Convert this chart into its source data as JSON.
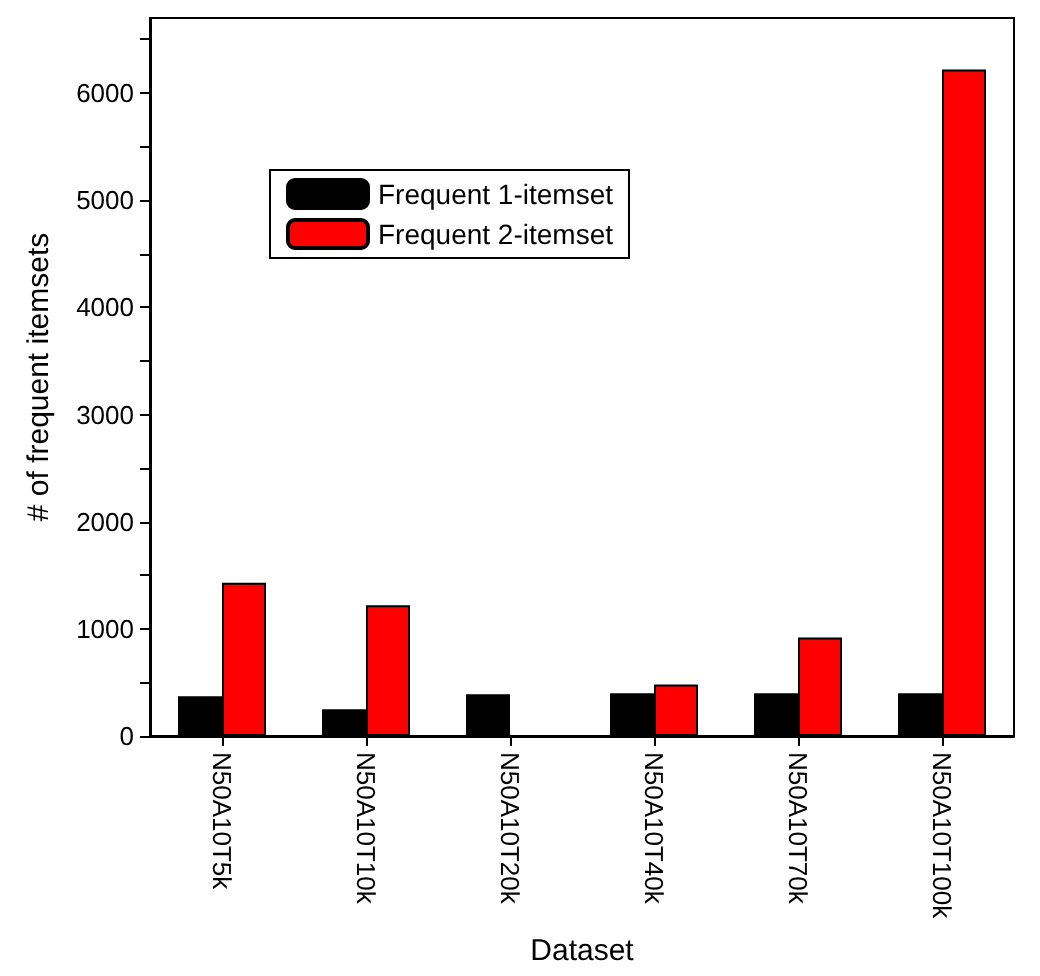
{
  "chart_data": {
    "type": "bar",
    "xlabel": "Dataset",
    "ylabel": "# of frequent itemsets",
    "categories": [
      "N50A10T5k",
      "N50A10T10k",
      "N50A10T20k",
      "N50A10T40k",
      "N50A10T70k",
      "N50A10T100k"
    ],
    "series": [
      {
        "name": "Frequent 1-itemset",
        "color": "#000000",
        "values": [
          370,
          250,
          390,
          400,
          400,
          400
        ]
      },
      {
        "name": "Frequent 2-itemset",
        "color": "#ff0000",
        "values": [
          1430,
          1220,
          null,
          480,
          920,
          6220
        ]
      }
    ],
    "ylim": [
      0,
      6700
    ],
    "yticks": [
      0,
      {
        "value": 500,
        "label": null
      },
      1000,
      {
        "value": 1500,
        "label": null
      },
      2000,
      {
        "value": 2500,
        "label": null
      },
      3000,
      {
        "value": 3500,
        "label": null
      },
      4000,
      {
        "value": 4500,
        "label": null
      },
      5000,
      {
        "value": 5500,
        "label": null
      },
      6000,
      {
        "value": 6500,
        "label": null
      }
    ],
    "legend": "top left",
    "grid": false
  }
}
